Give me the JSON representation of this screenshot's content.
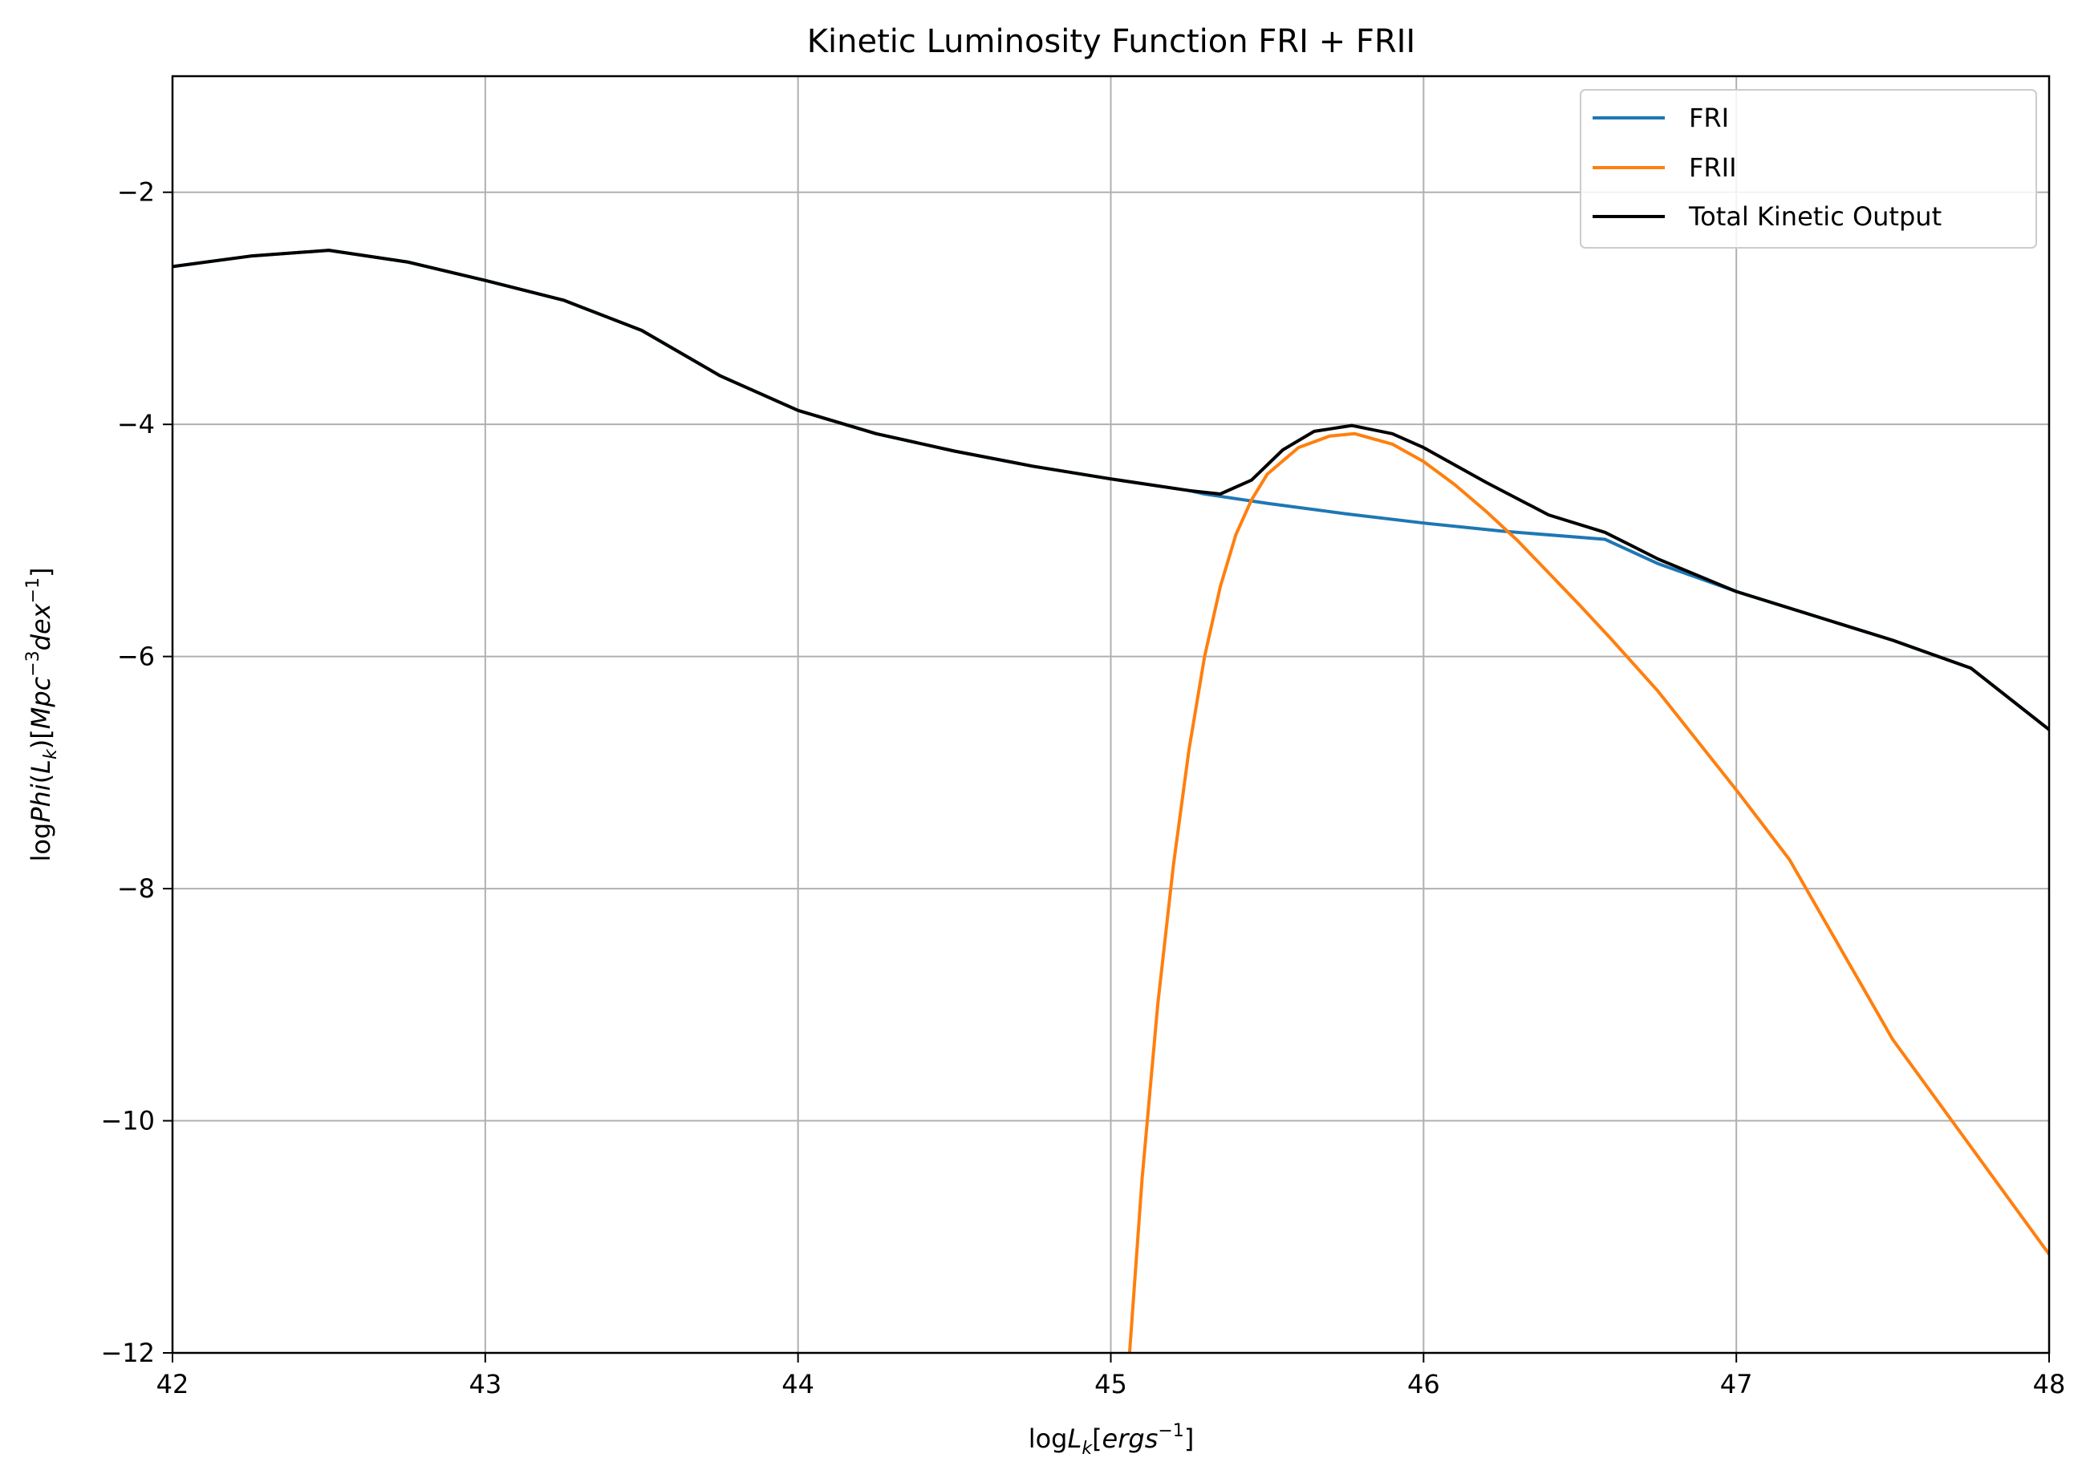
{
  "chart_data": {
    "type": "line",
    "title": "Kinetic Luminosity Function FRI + FRII",
    "xlabel": "logL_k[ergs^-1]",
    "ylabel": "logPhi(L_k)[Mpc^-3dex^-1]",
    "xlim": [
      42,
      48
    ],
    "ylim": [
      -12,
      -1
    ],
    "grid": true,
    "legend_position": "top-right",
    "x_ticks": [
      "42",
      "43",
      "44",
      "45",
      "46",
      "47",
      "48"
    ],
    "y_ticks": [
      "−2",
      "−4",
      "−6",
      "−8",
      "−10",
      "−12"
    ],
    "y_tick_values": [
      -2,
      -4,
      -6,
      -8,
      -10,
      -12
    ],
    "series": [
      {
        "name": "FRI",
        "color": "#1f77b4",
        "x": [
          42.0,
          42.25,
          42.5,
          42.75,
          43.0,
          43.25,
          43.5,
          43.75,
          44.0,
          44.25,
          44.5,
          44.75,
          45.0,
          45.25,
          45.3,
          45.5,
          45.75,
          46.0,
          46.25,
          46.58,
          46.75,
          47.0,
          47.25,
          47.5,
          47.75,
          48.0
        ],
        "y": [
          -2.64,
          -2.55,
          -2.5,
          -2.6,
          -2.76,
          -2.93,
          -3.19,
          -3.58,
          -3.88,
          -4.08,
          -4.23,
          -4.36,
          -4.47,
          -4.57,
          -4.6,
          -4.68,
          -4.77,
          -4.85,
          -4.92,
          -4.99,
          -5.2,
          -5.44,
          -5.65,
          -5.86,
          -6.1,
          -6.63
        ]
      },
      {
        "name": "FRII",
        "color": "#ff7f0e",
        "x": [
          45.06,
          45.1,
          45.15,
          45.2,
          45.25,
          45.3,
          45.35,
          45.4,
          45.45,
          45.5,
          45.6,
          45.7,
          45.78,
          45.9,
          46.0,
          46.1,
          46.2,
          46.3,
          46.4,
          46.5,
          46.6,
          46.75,
          47.0,
          47.17,
          47.5,
          48.0
        ],
        "y": [
          -12.0,
          -10.5,
          -9.0,
          -7.8,
          -6.8,
          -6.0,
          -5.4,
          -4.95,
          -4.65,
          -4.43,
          -4.2,
          -4.1,
          -4.08,
          -4.17,
          -4.32,
          -4.52,
          -4.75,
          -5.0,
          -5.28,
          -5.56,
          -5.85,
          -6.3,
          -7.15,
          -7.75,
          -9.3,
          -11.15
        ]
      },
      {
        "name": "Total Kinetic Output",
        "color": "#000000",
        "x": [
          42.0,
          42.25,
          42.5,
          42.75,
          43.0,
          43.25,
          43.5,
          43.75,
          44.0,
          44.25,
          44.5,
          44.75,
          45.0,
          45.25,
          45.35,
          45.45,
          45.55,
          45.65,
          45.77,
          45.9,
          46.0,
          46.2,
          46.4,
          46.58,
          46.75,
          47.0,
          47.25,
          47.5,
          47.75,
          48.0
        ],
        "y": [
          -2.64,
          -2.55,
          -2.5,
          -2.6,
          -2.76,
          -2.93,
          -3.19,
          -3.58,
          -3.88,
          -4.08,
          -4.23,
          -4.36,
          -4.47,
          -4.57,
          -4.6,
          -4.48,
          -4.22,
          -4.06,
          -4.01,
          -4.08,
          -4.2,
          -4.5,
          -4.78,
          -4.93,
          -5.16,
          -5.44,
          -5.65,
          -5.86,
          -6.1,
          -6.63
        ]
      }
    ]
  }
}
